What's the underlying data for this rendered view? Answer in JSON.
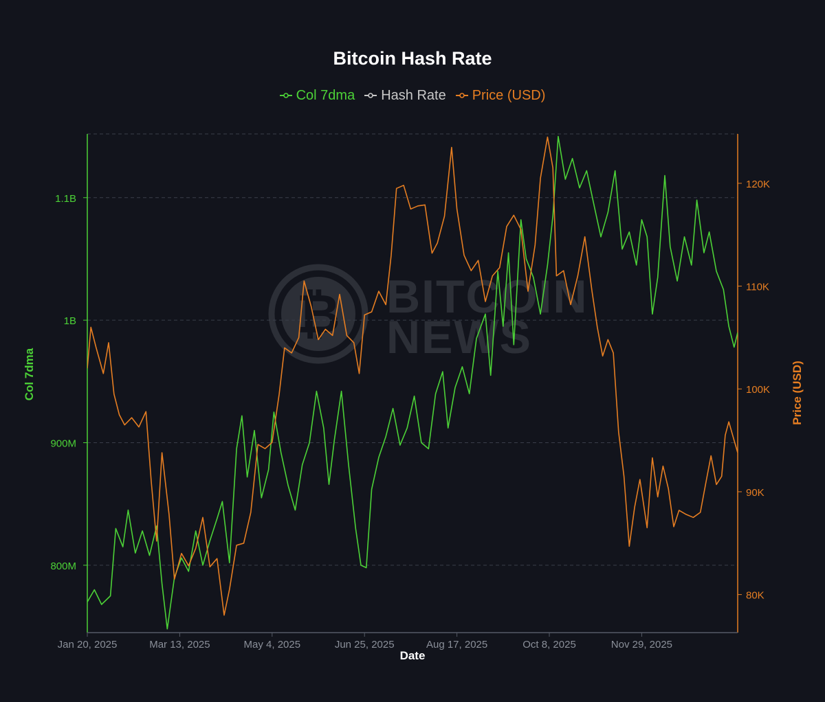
{
  "chart_data": {
    "type": "line",
    "title": "Bitcoin Hash Rate",
    "xlabel": "Date",
    "ylabel_left": "Col 7dma",
    "ylabel_right": "Price (USD)",
    "x_ticks": [
      "Jan 20, 2025",
      "Mar 13, 2025",
      "May 4, 2025",
      "Jun 25, 2025",
      "Aug 17, 2025",
      "Oct 8, 2025",
      "Nov 29, 2025"
    ],
    "y_left_ticks": [
      {
        "value": 800000000,
        "label": "800M"
      },
      {
        "value": 900000000,
        "label": "900M"
      },
      {
        "value": 1000000000,
        "label": "1B"
      },
      {
        "value": 1100000000,
        "label": "1.1B"
      }
    ],
    "y_right_ticks": [
      {
        "value": 80000,
        "label": "80K"
      },
      {
        "value": 90000,
        "label": "90K"
      },
      {
        "value": 100000,
        "label": "100K"
      },
      {
        "value": 110000,
        "label": "110K"
      },
      {
        "value": 120000,
        "label": "120K"
      }
    ],
    "x_range": [
      "2025-01-20",
      "2026-01-21"
    ],
    "y_left_range": [
      745000000,
      1152000000
    ],
    "y_right_range": [
      76300,
      124800
    ],
    "grid": "horizontal-dashed",
    "legend_position": "top-center",
    "watermark": "BITCOIN NEWS",
    "legend": [
      {
        "name": "Col 7dma",
        "color": "#4cd137"
      },
      {
        "name": "Hash Rate",
        "color": "#c8c8c8"
      },
      {
        "name": "Price (USD)",
        "color": "#e67e22"
      }
    ],
    "series": [
      {
        "name": "Col 7dma",
        "axis": "left",
        "color": "#4cd137",
        "points": [
          [
            "2025-01-20",
            770000000
          ],
          [
            "2025-01-24",
            780000000
          ],
          [
            "2025-01-28",
            768000000
          ],
          [
            "2025-02-02",
            775000000
          ],
          [
            "2025-02-05",
            830000000
          ],
          [
            "2025-02-09",
            815000000
          ],
          [
            "2025-02-12",
            845000000
          ],
          [
            "2025-02-16",
            810000000
          ],
          [
            "2025-02-20",
            828000000
          ],
          [
            "2025-02-24",
            808000000
          ],
          [
            "2025-02-28",
            832000000
          ],
          [
            "2025-03-03",
            785000000
          ],
          [
            "2025-03-06",
            748000000
          ],
          [
            "2025-03-10",
            790000000
          ],
          [
            "2025-03-14",
            806000000
          ],
          [
            "2025-03-18",
            795000000
          ],
          [
            "2025-03-22",
            828000000
          ],
          [
            "2025-03-26",
            800000000
          ],
          [
            "2025-03-30",
            820000000
          ],
          [
            "2025-04-03",
            838000000
          ],
          [
            "2025-04-06",
            852000000
          ],
          [
            "2025-04-10",
            802000000
          ],
          [
            "2025-04-14",
            895000000
          ],
          [
            "2025-04-17",
            922000000
          ],
          [
            "2025-04-20",
            872000000
          ],
          [
            "2025-04-24",
            910000000
          ],
          [
            "2025-04-28",
            855000000
          ],
          [
            "2025-05-02",
            878000000
          ],
          [
            "2025-05-05",
            925000000
          ],
          [
            "2025-05-09",
            892000000
          ],
          [
            "2025-05-13",
            865000000
          ],
          [
            "2025-05-17",
            845000000
          ],
          [
            "2025-05-21",
            882000000
          ],
          [
            "2025-05-25",
            900000000
          ],
          [
            "2025-05-29",
            942000000
          ],
          [
            "2025-06-02",
            912000000
          ],
          [
            "2025-06-05",
            866000000
          ],
          [
            "2025-06-08",
            902000000
          ],
          [
            "2025-06-12",
            942000000
          ],
          [
            "2025-06-16",
            882000000
          ],
          [
            "2025-06-20",
            830000000
          ],
          [
            "2025-06-23",
            800000000
          ],
          [
            "2025-06-26",
            798000000
          ],
          [
            "2025-06-29",
            862000000
          ],
          [
            "2025-07-03",
            888000000
          ],
          [
            "2025-07-07",
            905000000
          ],
          [
            "2025-07-11",
            928000000
          ],
          [
            "2025-07-15",
            898000000
          ],
          [
            "2025-07-19",
            912000000
          ],
          [
            "2025-07-23",
            938000000
          ],
          [
            "2025-07-27",
            900000000
          ],
          [
            "2025-07-31",
            895000000
          ],
          [
            "2025-08-04",
            940000000
          ],
          [
            "2025-08-08",
            958000000
          ],
          [
            "2025-08-11",
            912000000
          ],
          [
            "2025-08-15",
            945000000
          ],
          [
            "2025-08-19",
            962000000
          ],
          [
            "2025-08-23",
            940000000
          ],
          [
            "2025-08-27",
            985000000
          ],
          [
            "2025-09-01",
            1005000000
          ],
          [
            "2025-09-04",
            955000000
          ],
          [
            "2025-09-08",
            1040000000
          ],
          [
            "2025-09-11",
            995000000
          ],
          [
            "2025-09-14",
            1055000000
          ],
          [
            "2025-09-17",
            980000000
          ],
          [
            "2025-09-21",
            1082000000
          ],
          [
            "2025-09-24",
            1050000000
          ],
          [
            "2025-09-28",
            1035000000
          ],
          [
            "2025-10-02",
            1005000000
          ],
          [
            "2025-10-06",
            1045000000
          ],
          [
            "2025-10-09",
            1085000000
          ],
          [
            "2025-10-12",
            1150000000
          ],
          [
            "2025-10-16",
            1115000000
          ],
          [
            "2025-10-20",
            1132000000
          ],
          [
            "2025-10-24",
            1108000000
          ],
          [
            "2025-10-28",
            1122000000
          ],
          [
            "2025-11-01",
            1095000000
          ],
          [
            "2025-11-05",
            1068000000
          ],
          [
            "2025-11-09",
            1088000000
          ],
          [
            "2025-11-13",
            1122000000
          ],
          [
            "2025-11-17",
            1058000000
          ],
          [
            "2025-11-21",
            1072000000
          ],
          [
            "2025-11-25",
            1045000000
          ],
          [
            "2025-11-28",
            1082000000
          ],
          [
            "2025-12-01",
            1068000000
          ],
          [
            "2025-12-04",
            1005000000
          ],
          [
            "2025-12-07",
            1035000000
          ],
          [
            "2025-12-11",
            1118000000
          ],
          [
            "2025-12-14",
            1060000000
          ],
          [
            "2025-12-18",
            1032000000
          ],
          [
            "2025-12-22",
            1068000000
          ],
          [
            "2025-12-26",
            1045000000
          ],
          [
            "2025-12-29",
            1098000000
          ],
          [
            "2026-01-02",
            1055000000
          ],
          [
            "2026-01-05",
            1072000000
          ],
          [
            "2026-01-09",
            1040000000
          ],
          [
            "2026-01-13",
            1025000000
          ],
          [
            "2026-01-16",
            995000000
          ],
          [
            "2026-01-19",
            978000000
          ],
          [
            "2026-01-21",
            990000000
          ]
        ]
      },
      {
        "name": "Price (USD)",
        "axis": "right",
        "color": "#e67e22",
        "points": [
          [
            "2025-01-20",
            102000
          ],
          [
            "2025-01-22",
            106000
          ],
          [
            "2025-01-25",
            104000
          ],
          [
            "2025-01-29",
            101500
          ],
          [
            "2025-02-01",
            104500
          ],
          [
            "2025-02-04",
            99500
          ],
          [
            "2025-02-07",
            97500
          ],
          [
            "2025-02-10",
            96500
          ],
          [
            "2025-02-14",
            97200
          ],
          [
            "2025-02-18",
            96300
          ],
          [
            "2025-02-22",
            97800
          ],
          [
            "2025-02-25",
            91000
          ],
          [
            "2025-02-28",
            85200
          ],
          [
            "2025-03-03",
            93800
          ],
          [
            "2025-03-07",
            87800
          ],
          [
            "2025-03-10",
            81500
          ],
          [
            "2025-03-14",
            84000
          ],
          [
            "2025-03-18",
            82800
          ],
          [
            "2025-03-22",
            84500
          ],
          [
            "2025-03-26",
            87500
          ],
          [
            "2025-03-30",
            82700
          ],
          [
            "2025-04-03",
            83500
          ],
          [
            "2025-04-07",
            78000
          ],
          [
            "2025-04-10",
            80500
          ],
          [
            "2025-04-14",
            84800
          ],
          [
            "2025-04-18",
            85000
          ],
          [
            "2025-04-22",
            88000
          ],
          [
            "2025-04-26",
            94600
          ],
          [
            "2025-04-30",
            94200
          ],
          [
            "2025-05-04",
            94800
          ],
          [
            "2025-05-08",
            99500
          ],
          [
            "2025-05-11",
            104000
          ],
          [
            "2025-05-15",
            103500
          ],
          [
            "2025-05-19",
            105000
          ],
          [
            "2025-05-22",
            110500
          ],
          [
            "2025-05-26",
            108000
          ],
          [
            "2025-05-30",
            104800
          ],
          [
            "2025-06-03",
            105800
          ],
          [
            "2025-06-07",
            105200
          ],
          [
            "2025-06-11",
            109200
          ],
          [
            "2025-06-15",
            105200
          ],
          [
            "2025-06-19",
            104500
          ],
          [
            "2025-06-22",
            101500
          ],
          [
            "2025-06-25",
            107200
          ],
          [
            "2025-06-29",
            107500
          ],
          [
            "2025-07-03",
            109500
          ],
          [
            "2025-07-07",
            108200
          ],
          [
            "2025-07-10",
            113000
          ],
          [
            "2025-07-13",
            119500
          ],
          [
            "2025-07-17",
            119800
          ],
          [
            "2025-07-21",
            117500
          ],
          [
            "2025-07-25",
            117800
          ],
          [
            "2025-07-29",
            117900
          ],
          [
            "2025-08-02",
            113200
          ],
          [
            "2025-08-05",
            114200
          ],
          [
            "2025-08-09",
            116800
          ],
          [
            "2025-08-13",
            123500
          ],
          [
            "2025-08-16",
            117500
          ],
          [
            "2025-08-20",
            113000
          ],
          [
            "2025-08-24",
            111500
          ],
          [
            "2025-08-28",
            112500
          ],
          [
            "2025-09-01",
            108500
          ],
          [
            "2025-09-05",
            111000
          ],
          [
            "2025-09-09",
            111800
          ],
          [
            "2025-09-13",
            115800
          ],
          [
            "2025-09-17",
            116900
          ],
          [
            "2025-09-21",
            115500
          ],
          [
            "2025-09-25",
            109500
          ],
          [
            "2025-09-29",
            114000
          ],
          [
            "2025-10-02",
            120500
          ],
          [
            "2025-10-06",
            124500
          ],
          [
            "2025-10-09",
            121500
          ],
          [
            "2025-10-11",
            111000
          ],
          [
            "2025-10-15",
            111500
          ],
          [
            "2025-10-19",
            108200
          ],
          [
            "2025-10-23",
            111000
          ],
          [
            "2025-10-27",
            114800
          ],
          [
            "2025-10-31",
            109500
          ],
          [
            "2025-11-03",
            106000
          ],
          [
            "2025-11-06",
            103200
          ],
          [
            "2025-11-09",
            104800
          ],
          [
            "2025-11-12",
            103500
          ],
          [
            "2025-11-15",
            95800
          ],
          [
            "2025-11-18",
            91500
          ],
          [
            "2025-11-21",
            84700
          ],
          [
            "2025-11-24",
            88500
          ],
          [
            "2025-11-27",
            91200
          ],
          [
            "2025-12-01",
            86500
          ],
          [
            "2025-12-04",
            93300
          ],
          [
            "2025-12-07",
            89500
          ],
          [
            "2025-12-10",
            92500
          ],
          [
            "2025-12-13",
            90300
          ],
          [
            "2025-12-16",
            86600
          ],
          [
            "2025-12-19",
            88200
          ],
          [
            "2025-12-23",
            87800
          ],
          [
            "2025-12-27",
            87500
          ],
          [
            "2025-12-31",
            88000
          ],
          [
            "2026-01-03",
            90800
          ],
          [
            "2026-01-06",
            93500
          ],
          [
            "2026-01-09",
            90700
          ],
          [
            "2026-01-12",
            91500
          ],
          [
            "2026-01-14",
            95500
          ],
          [
            "2026-01-16",
            96800
          ],
          [
            "2026-01-19",
            95000
          ],
          [
            "2026-01-21",
            93800
          ]
        ]
      }
    ]
  }
}
